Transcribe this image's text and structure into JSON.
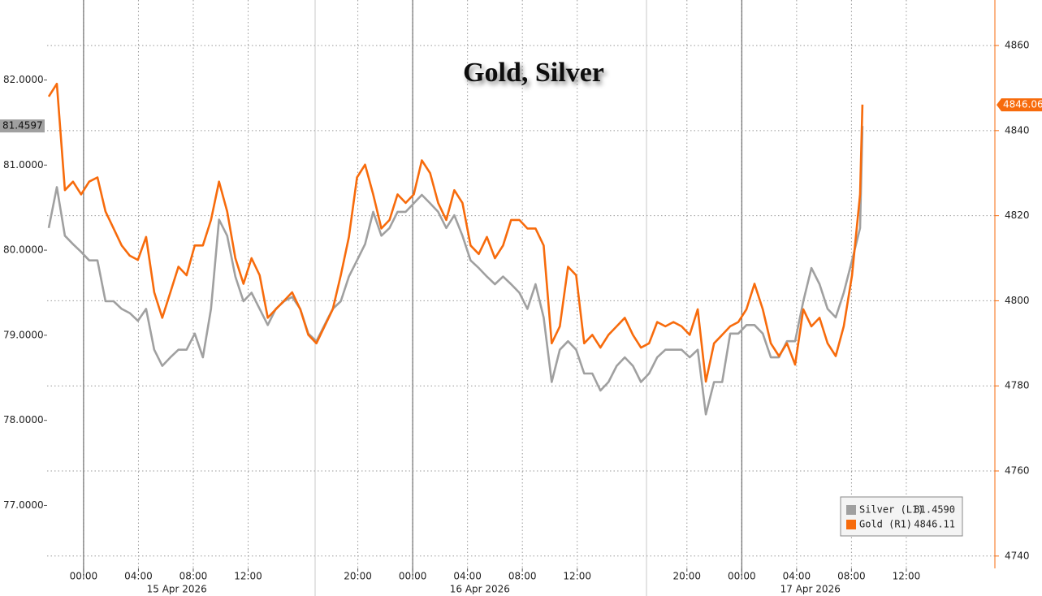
{
  "chart_data": {
    "type": "line",
    "title": "Gold, Silver",
    "x": [
      -2.54,
      -1.95,
      -1.36,
      -0.77,
      -0.18,
      0.41,
      1.01,
      1.6,
      2.19,
      2.78,
      3.37,
      3.96,
      4.56,
      5.15,
      5.74,
      6.33,
      6.92,
      7.51,
      8.11,
      8.7,
      9.29,
      9.88,
      10.47,
      11.07,
      11.66,
      12.25,
      12.84,
      13.43,
      14.02,
      14.62,
      15.21,
      15.8,
      16.39,
      16.98,
      17.57,
      18.17,
      18.76,
      19.35,
      19.94,
      20.53,
      21.12,
      21.72,
      22.31,
      22.9,
      23.49,
      24.08,
      24.67,
      25.27,
      25.86,
      26.45,
      27.04,
      27.63,
      28.22,
      28.82,
      29.41,
      30.0,
      30.59,
      31.18,
      31.78,
      32.37,
      32.96,
      33.55,
      34.14,
      34.73,
      35.33,
      35.92,
      36.51,
      37.1,
      37.69,
      38.28,
      38.88,
      39.47,
      40.06,
      40.65,
      41.24,
      41.83,
      42.43,
      43.02,
      43.61,
      44.2,
      44.79,
      45.38,
      45.98,
      46.57,
      47.16,
      47.75,
      48.34,
      48.93,
      49.53,
      50.12,
      50.71,
      51.3,
      51.89,
      52.49,
      53.08,
      53.67,
      54.26,
      54.85,
      55.44,
      56.04,
      56.63,
      56.8
    ],
    "series": [
      {
        "name": "Silver (L1)",
        "color": "#a0a0a0",
        "axis": "y",
        "legend_value_label": "81.4590",
        "values": [
          80.26,
          80.74,
          80.17,
          80.07,
          79.98,
          79.88,
          79.88,
          79.4,
          79.4,
          79.31,
          79.26,
          79.17,
          79.31,
          78.83,
          78.64,
          78.74,
          78.83,
          78.83,
          79.02,
          78.74,
          79.31,
          80.36,
          80.17,
          79.69,
          79.4,
          79.5,
          79.31,
          79.12,
          79.31,
          79.4,
          79.45,
          79.31,
          79.02,
          78.93,
          79.12,
          79.31,
          79.4,
          79.69,
          79.88,
          80.07,
          80.45,
          80.17,
          80.26,
          80.45,
          80.45,
          80.55,
          80.65,
          80.55,
          80.45,
          80.26,
          80.41,
          80.17,
          79.88,
          79.79,
          79.69,
          79.6,
          79.69,
          79.6,
          79.5,
          79.31,
          79.6,
          79.21,
          78.45,
          78.83,
          78.93,
          78.83,
          78.55,
          78.55,
          78.35,
          78.45,
          78.64,
          78.74,
          78.64,
          78.45,
          78.55,
          78.74,
          78.83,
          78.83,
          78.83,
          78.74,
          78.83,
          78.07,
          78.45,
          78.45,
          79.02,
          79.02,
          79.12,
          79.12,
          79.02,
          78.74,
          78.74,
          78.93,
          78.93,
          79.4,
          79.79,
          79.6,
          79.31,
          79.21,
          79.5,
          79.88,
          80.26,
          81.459
        ]
      },
      {
        "name": "Gold (R1)",
        "color": "#f76b0c",
        "axis": "y2",
        "legend_value_label": "4846.11",
        "values": [
          4848,
          4851,
          4826,
          4828,
          4825,
          4828,
          4829,
          4821,
          4817,
          4813,
          4810.6,
          4809.6,
          4815,
          4802,
          4796,
          4802,
          4808,
          4806,
          4813,
          4813,
          4819,
          4828,
          4821,
          4810,
          4804,
          4810,
          4806,
          4796,
          4798,
          4800,
          4802,
          4798,
          4792,
          4790,
          4794,
          4798,
          4806,
          4815,
          4829,
          4832,
          4825,
          4817,
          4819,
          4825,
          4823,
          4825,
          4833,
          4830,
          4823,
          4819,
          4826,
          4823,
          4813,
          4811,
          4815,
          4810,
          4813,
          4819,
          4819,
          4817,
          4817,
          4813,
          4790,
          4794,
          4808,
          4806,
          4790,
          4792,
          4789,
          4792,
          4794,
          4796,
          4792,
          4789,
          4790,
          4795,
          4794,
          4795,
          4794,
          4792,
          4798,
          4781,
          4790,
          4792,
          4794,
          4795,
          4798,
          4804,
          4798,
          4790,
          4787,
          4790,
          4785,
          4798,
          4794,
          4796,
          4790,
          4787,
          4794,
          4806,
          4825,
          4846.11
        ]
      }
    ],
    "xlim": [
      -2.66,
      66.46
    ],
    "xticks": [
      {
        "value": 0,
        "label": "00:00"
      },
      {
        "value": 4,
        "label": "04:00"
      },
      {
        "value": 8,
        "label": "08:00"
      },
      {
        "value": 12,
        "label": "12:00"
      },
      {
        "value": 20,
        "label": "20:00"
      },
      {
        "value": 24,
        "label": "00:00"
      },
      {
        "value": 28,
        "label": "04:00"
      },
      {
        "value": 32,
        "label": "08:00"
      },
      {
        "value": 36,
        "label": "12:00"
      },
      {
        "value": 44,
        "label": "20:00"
      },
      {
        "value": 48,
        "label": "00:00"
      },
      {
        "value": 52,
        "label": "04:00"
      },
      {
        "value": 56,
        "label": "08:00"
      },
      {
        "value": 60,
        "label": "12:00"
      }
    ],
    "date_labels": [
      {
        "value": 6.8,
        "label": "15 Apr 2026"
      },
      {
        "value": 28.9,
        "label": "16 Apr 2026"
      },
      {
        "value": 53.0,
        "label": "17 Apr 2026"
      }
    ],
    "ylim": [
      76.26,
      82.94
    ],
    "yticks": [
      {
        "value": 77,
        "label": "77.0000"
      },
      {
        "value": 78,
        "label": "78.0000"
      },
      {
        "value": 79,
        "label": "79.0000"
      },
      {
        "value": 80,
        "label": "80.0000"
      },
      {
        "value": 81,
        "label": "81.0000"
      },
      {
        "value": 82,
        "label": "82.0000"
      }
    ],
    "y2lim": [
      4737.1,
      4870.7
    ],
    "y2ticks": [
      4740,
      4760,
      4780,
      4800,
      4820,
      4840,
      4860
    ],
    "y_badge": {
      "value": 81.4597,
      "label": "81.4597"
    },
    "y2_badge": {
      "value": 4846.06,
      "label": "4846.06"
    },
    "grid": true,
    "legend": "lower right"
  }
}
